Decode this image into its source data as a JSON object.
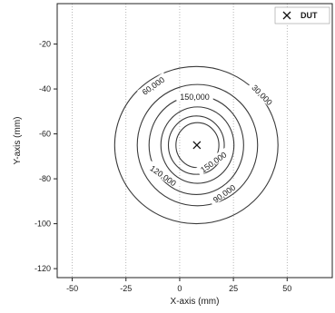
{
  "chart_data": {
    "type": "contour",
    "xlabel": "X-axis (mm)",
    "ylabel": "Y-axis (mm)",
    "xlim": [
      -57,
      71
    ],
    "ylim": [
      -124,
      -2
    ],
    "x_ticks": [
      -50,
      -25,
      0,
      25,
      50
    ],
    "y_ticks": [
      -20,
      -40,
      -60,
      -80,
      -100,
      -120
    ],
    "grid": "vertical-dotted",
    "legend": {
      "position": "top-right",
      "entries": [
        {
          "label": "DUT",
          "marker": "x"
        }
      ]
    },
    "dut_point": {
      "x": 8,
      "y": -65
    },
    "contours": [
      {
        "level": 30000,
        "label": "30,000",
        "rx": 38,
        "ry": 35
      },
      {
        "level": 60000,
        "label": "60,000",
        "rx": 28,
        "ry": 27
      },
      {
        "level": 90000,
        "label": "90,000",
        "rx": 22,
        "ry": 22
      },
      {
        "level": 120000,
        "label": "120,000",
        "rx": 17,
        "ry": 17
      },
      {
        "level": 150000,
        "label": "150,000",
        "rx": 13,
        "ry": 13
      },
      {
        "level": 150000,
        "label": "150,000",
        "rx": 10,
        "ry": 10
      }
    ],
    "contour_label_positions": [
      {
        "text": "30,000",
        "x": 38,
        "y": -43,
        "angle": 45
      },
      {
        "text": "60,000",
        "x": -12,
        "y": -39,
        "angle": -35
      },
      {
        "text": "150,000",
        "x": 7,
        "y": -44,
        "angle": 0
      },
      {
        "text": "120,000",
        "x": -8,
        "y": -79,
        "angle": 35
      },
      {
        "text": "150,000",
        "x": 16,
        "y": -73,
        "angle": -35
      },
      {
        "text": "90,000",
        "x": 21,
        "y": -87,
        "angle": -35
      }
    ]
  }
}
